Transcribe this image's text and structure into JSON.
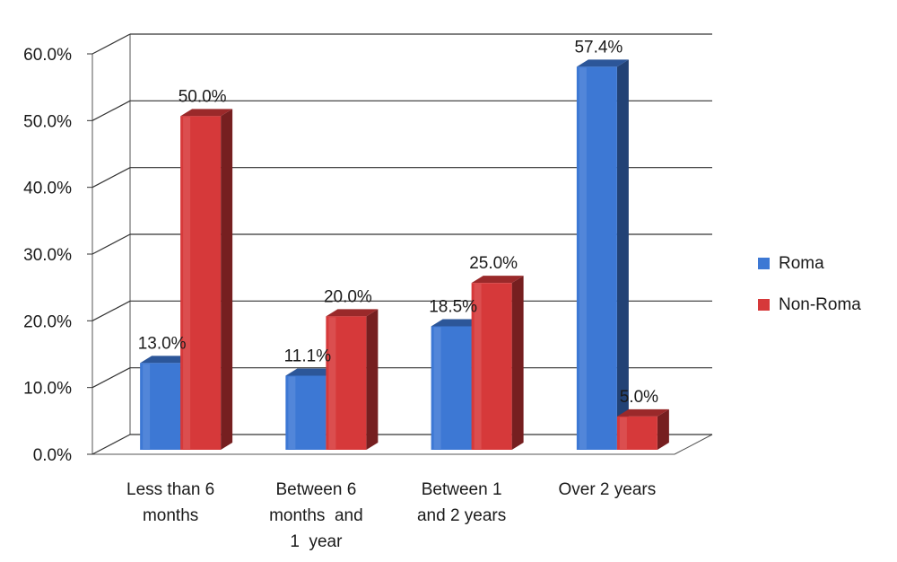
{
  "chart_data": {
    "type": "bar",
    "title": "",
    "xlabel": "",
    "ylabel": "",
    "ylim": [
      0,
      60
    ],
    "yticks": [
      "0.0%",
      "10.0%",
      "20.0%",
      "30.0%",
      "40.0%",
      "50.0%",
      "60.0%"
    ],
    "grid": true,
    "style": "3d-clustered-column",
    "legend_position": "right",
    "categories": [
      [
        "Less than 6",
        "months"
      ],
      [
        "Between 6",
        "months  and",
        "1  year"
      ],
      [
        "Between 1",
        "and 2 years"
      ],
      [
        "Over 2 years"
      ]
    ],
    "series": [
      {
        "name": "Roma",
        "color": "#3d78d4",
        "values": [
          13.0,
          11.1,
          18.5,
          57.4
        ],
        "labels": [
          "13.0%",
          "11.1%",
          "18.5%",
          "57.4%"
        ]
      },
      {
        "name": "Non-Roma",
        "color": "#d6393a",
        "values": [
          50.0,
          20.0,
          25.0,
          5.0
        ],
        "labels": [
          "50.0%",
          "20.0%",
          "25.0%",
          "5.0%"
        ]
      }
    ]
  }
}
